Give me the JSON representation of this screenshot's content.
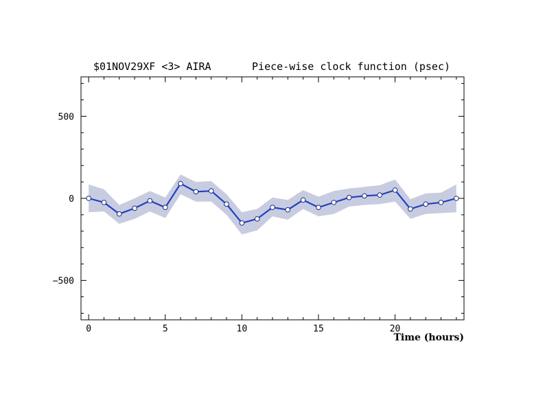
{
  "chart_data": {
    "type": "line",
    "title_left": "$01NOV29XF <3>  AIRA",
    "title_right": "Piece-wise clock function (psec)",
    "xlabel": "Time (hours)",
    "ylabel": "",
    "xlim": [
      -0.5,
      24.5
    ],
    "ylim": [
      -740,
      740
    ],
    "x_ticks": [
      0,
      5,
      10,
      15,
      20
    ],
    "y_ticks": [
      500,
      0,
      -500
    ],
    "y_tick_labels": [
      "500",
      "0",
      "−500"
    ],
    "series": [
      {
        "x": [
          0,
          1,
          2,
          3,
          4,
          5,
          6,
          7,
          8,
          9,
          10,
          11,
          12,
          13,
          14,
          15,
          16,
          17,
          18,
          19,
          20,
          21,
          22,
          23,
          24
        ],
        "values": [
          0,
          -25,
          -95,
          -60,
          -15,
          -55,
          90,
          40,
          45,
          -35,
          -150,
          -125,
          -55,
          -70,
          -10,
          -55,
          -25,
          5,
          15,
          20,
          50,
          -65,
          -35,
          -25,
          0
        ],
        "upper": [
          85,
          55,
          -40,
          0,
          45,
          5,
          145,
          100,
          105,
          25,
          -85,
          -65,
          5,
          -10,
          50,
          10,
          45,
          60,
          70,
          80,
          115,
          -5,
          30,
          35,
          85
        ],
        "lower": [
          -85,
          -80,
          -155,
          -125,
          -80,
          -120,
          25,
          -20,
          -20,
          -100,
          -220,
          -195,
          -110,
          -130,
          -65,
          -110,
          -95,
          -50,
          -40,
          -35,
          -20,
          -125,
          -95,
          -90,
          -85
        ]
      }
    ],
    "colors": {
      "line": "#2040c0",
      "band": "#c8cce0",
      "marker_fill": "#ffffff"
    },
    "grid": false
  }
}
